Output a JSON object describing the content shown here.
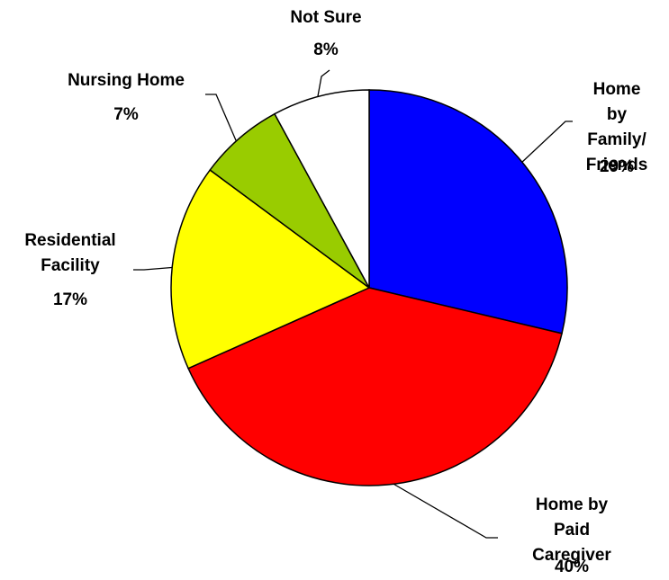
{
  "chart_data": {
    "type": "pie",
    "categories": [
      "Home by\nFamily/\nFriends",
      "Home by Paid\nCaregiver",
      "Residential\nFacility",
      "Nursing Home",
      "Not Sure"
    ],
    "values": [
      29,
      40,
      17,
      7,
      8
    ],
    "value_labels": [
      "29%",
      "40%",
      "17%",
      "7%",
      "8%"
    ],
    "colors": [
      "#0000ff",
      "#ff0000",
      "#ffff00",
      "#99cc00",
      "#ffffff"
    ]
  }
}
